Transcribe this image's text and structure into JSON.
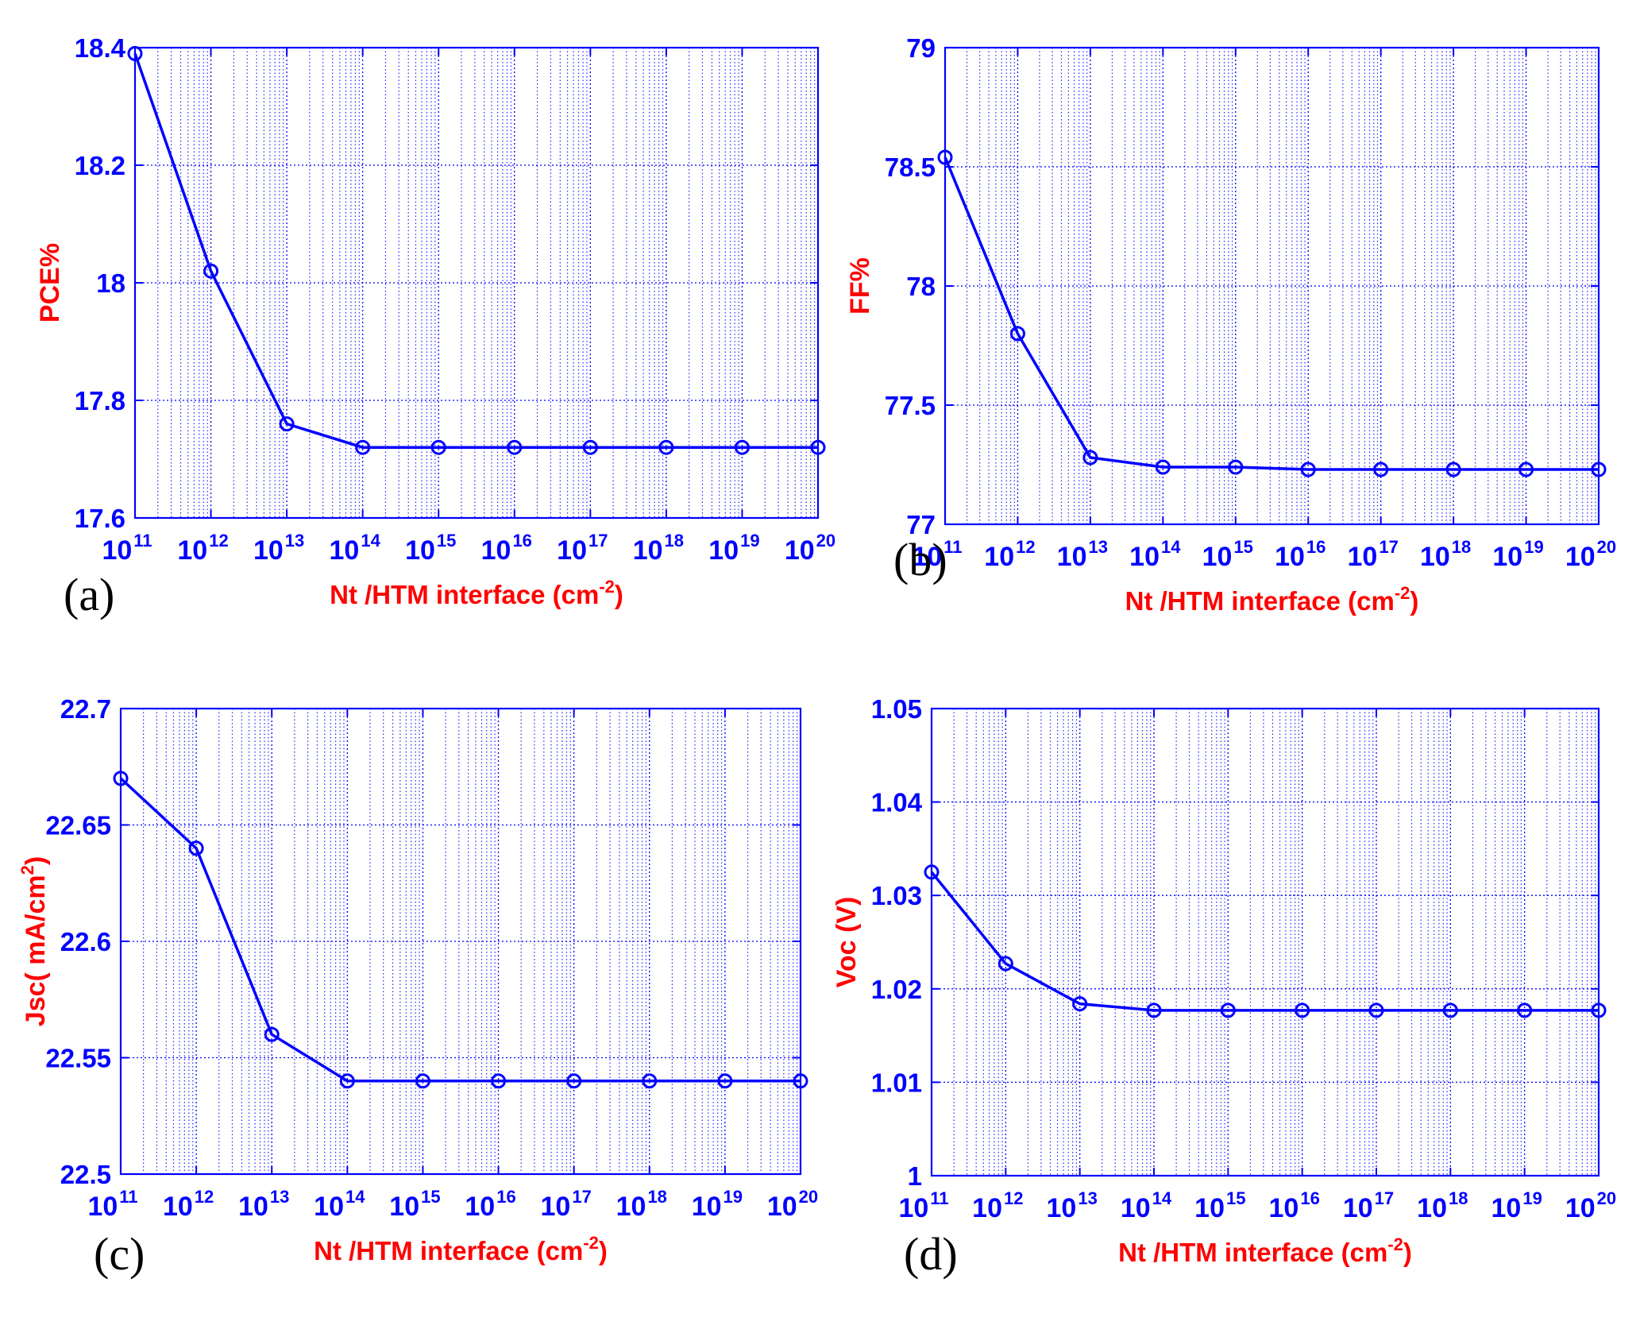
{
  "x_axis_label": {
    "base": "Nt /HTM interface (cm",
    "exponent": "-2",
    "suffix": ")"
  },
  "colors": {
    "line": "#0000ff",
    "label": "#ff0000",
    "grid": "#0000ff",
    "panel_letter": "#000000"
  },
  "chart_data": [
    {
      "panel": "(a)",
      "type": "line",
      "scale_x": "log",
      "grid": true,
      "x_ticks": [
        {
          "base": "10",
          "exp": "11"
        },
        {
          "base": "10",
          "exp": "12"
        },
        {
          "base": "10",
          "exp": "13"
        },
        {
          "base": "10",
          "exp": "14"
        },
        {
          "base": "10",
          "exp": "15"
        },
        {
          "base": "10",
          "exp": "16"
        },
        {
          "base": "10",
          "exp": "17"
        },
        {
          "base": "10",
          "exp": "18"
        },
        {
          "base": "10",
          "exp": "19"
        },
        {
          "base": "10",
          "exp": "20"
        }
      ],
      "y_label": {
        "base": "PCE%"
      },
      "y_ticks": [
        "17.6",
        "17.8",
        "18",
        "18.2",
        "18.4"
      ],
      "ylim": [
        17.6,
        18.4
      ],
      "x_exp_range": [
        11,
        20
      ],
      "x": [
        100000000000.0,
        1000000000000.0,
        10000000000000.0,
        100000000000000.0,
        1000000000000000.0,
        1e+16,
        1e+17,
        1e+18,
        1e+19,
        1e+20
      ],
      "y": [
        18.39,
        18.02,
        17.76,
        17.72,
        17.72,
        17.72,
        17.72,
        17.72,
        17.72,
        17.72
      ]
    },
    {
      "panel": "(b)",
      "type": "line",
      "scale_x": "log",
      "grid": true,
      "x_ticks": [
        {
          "base": "10",
          "exp": "11"
        },
        {
          "base": "10",
          "exp": "12"
        },
        {
          "base": "10",
          "exp": "13"
        },
        {
          "base": "10",
          "exp": "14"
        },
        {
          "base": "10",
          "exp": "15"
        },
        {
          "base": "10",
          "exp": "16"
        },
        {
          "base": "10",
          "exp": "17"
        },
        {
          "base": "10",
          "exp": "18"
        },
        {
          "base": "10",
          "exp": "19"
        },
        {
          "base": "10",
          "exp": "20"
        }
      ],
      "y_label": {
        "base": "FF%"
      },
      "y_ticks": [
        "77",
        "77.5",
        "78",
        "78.5",
        "79"
      ],
      "ylim": [
        77,
        79
      ],
      "x_exp_range": [
        11,
        20
      ],
      "x": [
        100000000000.0,
        1000000000000.0,
        10000000000000.0,
        100000000000000.0,
        1000000000000000.0,
        1e+16,
        1e+17,
        1e+18,
        1e+19,
        1e+20
      ],
      "y": [
        78.54,
        77.8,
        77.28,
        77.24,
        77.24,
        77.23,
        77.23,
        77.23,
        77.23,
        77.23
      ]
    },
    {
      "panel": "(c)",
      "type": "line",
      "scale_x": "log",
      "grid": true,
      "x_ticks": [
        {
          "base": "10",
          "exp": "11"
        },
        {
          "base": "10",
          "exp": "12"
        },
        {
          "base": "10",
          "exp": "13"
        },
        {
          "base": "10",
          "exp": "14"
        },
        {
          "base": "10",
          "exp": "15"
        },
        {
          "base": "10",
          "exp": "16"
        },
        {
          "base": "10",
          "exp": "17"
        },
        {
          "base": "10",
          "exp": "18"
        },
        {
          "base": "10",
          "exp": "19"
        },
        {
          "base": "10",
          "exp": "20"
        }
      ],
      "y_label": {
        "base": "Jsc( mA/cm",
        "exponent": "2",
        "suffix": ")"
      },
      "y_ticks": [
        "22.5",
        "22.55",
        "22.6",
        "22.65",
        "22.7"
      ],
      "ylim": [
        22.5,
        22.7
      ],
      "x_exp_range": [
        11,
        20
      ],
      "x": [
        100000000000.0,
        1000000000000.0,
        10000000000000.0,
        100000000000000.0,
        1000000000000000.0,
        1e+16,
        1e+17,
        1e+18,
        1e+19,
        1e+20
      ],
      "y": [
        22.67,
        22.64,
        22.56,
        22.54,
        22.54,
        22.54,
        22.54,
        22.54,
        22.54,
        22.54
      ]
    },
    {
      "panel": "(d)",
      "type": "line",
      "scale_x": "log",
      "grid": true,
      "x_ticks": [
        {
          "base": "10",
          "exp": "11"
        },
        {
          "base": "10",
          "exp": "12"
        },
        {
          "base": "10",
          "exp": "13"
        },
        {
          "base": "10",
          "exp": "14"
        },
        {
          "base": "10",
          "exp": "15"
        },
        {
          "base": "10",
          "exp": "16"
        },
        {
          "base": "10",
          "exp": "17"
        },
        {
          "base": "10",
          "exp": "18"
        },
        {
          "base": "10",
          "exp": "19"
        },
        {
          "base": "10",
          "exp": "20"
        }
      ],
      "y_label": {
        "base": "Voc (V)"
      },
      "y_ticks": [
        "1",
        "1.01",
        "1.02",
        "1.03",
        "1.04",
        "1.05"
      ],
      "ylim": [
        1,
        1.05
      ],
      "x_exp_range": [
        11,
        20
      ],
      "x": [
        100000000000.0,
        1000000000000.0,
        10000000000000.0,
        100000000000000.0,
        1000000000000000.0,
        1e+16,
        1e+17,
        1e+18,
        1e+19,
        1e+20
      ],
      "y": [
        1.0325,
        1.0227,
        1.0184,
        1.0177,
        1.0177,
        1.0177,
        1.0177,
        1.0177,
        1.0177,
        1.0177
      ]
    }
  ]
}
